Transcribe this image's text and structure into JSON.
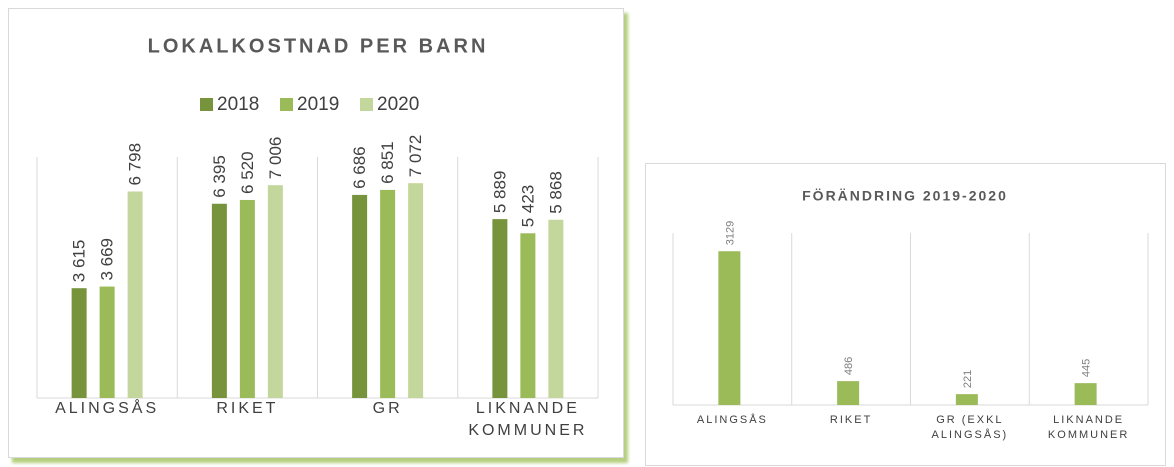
{
  "chart_data": [
    {
      "type": "bar",
      "title": "LOKALKOSTNAD PER BARN",
      "categories": [
        "ALINGSÅS",
        "RIKET",
        "GR",
        "LIKNANDE KOMMUNER"
      ],
      "series": [
        {
          "name": "2018",
          "color": "#77933c",
          "values": [
            3615,
            6395,
            6686,
            5889
          ],
          "value_labels": [
            "3 615",
            "6 395",
            "6 686",
            "5 889"
          ]
        },
        {
          "name": "2019",
          "color": "#9bbb59",
          "values": [
            3669,
            6520,
            6851,
            5423
          ],
          "value_labels": [
            "3 669",
            "6 520",
            "6 851",
            "5 423"
          ]
        },
        {
          "name": "2020",
          "color": "#c3d69b",
          "values": [
            6798,
            7006,
            7072,
            5868
          ],
          "value_labels": [
            "6 798",
            "7 006",
            "7 072",
            "5 868"
          ]
        }
      ],
      "ylim": [
        0,
        8000
      ],
      "legend": "top"
    },
    {
      "type": "bar",
      "title": "FÖRÄNDRING 2019-2020",
      "categories": [
        "ALINGSÅS",
        "RIKET",
        "GR (EXKL ALINGSÅS)",
        "LIKNANDE KOMMUNER"
      ],
      "values": [
        3129,
        486,
        221,
        445
      ],
      "color": "#9bbb59",
      "ylim": [
        0,
        3500
      ]
    }
  ]
}
